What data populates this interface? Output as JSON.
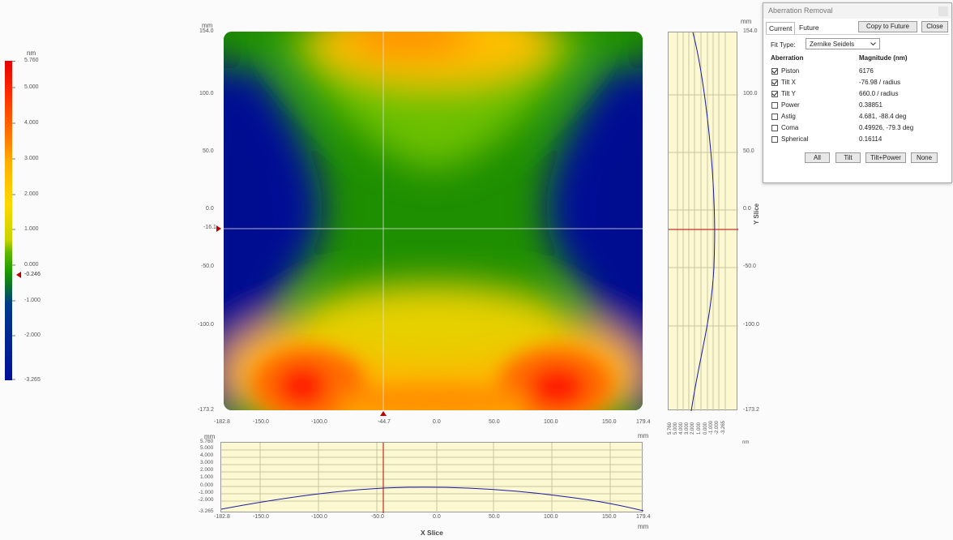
{
  "colorbar": {
    "unit": "nm",
    "max_label": "5.760",
    "ticks": [
      "5.000",
      "4.000",
      "3.000",
      "2.000",
      "1.000",
      "0.000",
      "-1.000",
      "-2.000"
    ],
    "marker_label": "-0.246",
    "min_label": "-3.265"
  },
  "map": {
    "unit_top": "mm",
    "y_ticks": [
      "154.0",
      "100.0",
      "50.0",
      "0.0",
      "-50.0",
      "-100.0",
      "-173.2"
    ],
    "y_cursor_label": "-16.1",
    "x_ticks": [
      "-182.8",
      "-150.0",
      "-100.0",
      "0.0",
      "50.0",
      "100.0",
      "150.0",
      "179.4"
    ],
    "x_cursor_label": "-44.7",
    "unit_bottom": "mm"
  },
  "yslice": {
    "unit_top": "mm",
    "y_ticks": [
      "154.0",
      "100.0",
      "50.0",
      "0.0",
      "-50.0",
      "-100.0",
      "-173.2"
    ],
    "title": "Y Slice",
    "x_ticks": [
      "5.760",
      "5.000",
      "4.000",
      "3.000",
      "2.000",
      "1.000",
      "0.000",
      "-1.000",
      "-2.000",
      "-3.265"
    ],
    "unit_bottom": "nm"
  },
  "xslice": {
    "unit_top": "mm",
    "y_ticks": [
      "5.760",
      "5.000",
      "4.000",
      "3.000",
      "2.000",
      "1.000",
      "0.000",
      "-1.000",
      "-2.000",
      "-3.265"
    ],
    "x_ticks": [
      "-182.8",
      "-150.0",
      "-100.0",
      "-50.0",
      "0.0",
      "50.0",
      "100.0",
      "150.0",
      "179.4"
    ],
    "unit_bottom": "mm",
    "title": "X Slice"
  },
  "dialog": {
    "title": "Aberration Removal",
    "tabs": [
      "Current",
      "Future"
    ],
    "copy_button": "Copy to Future",
    "close_button": "Close",
    "fit_type_label": "Fit Type:",
    "fit_type_value": "Zernike Seidels",
    "col_aberration": "Aberration",
    "col_magnitude": "Magnitude (nm)",
    "rows": [
      {
        "name": "Piston",
        "value": "6176",
        "checked": true
      },
      {
        "name": "Tilt X",
        "value": "-76.98 / radius",
        "checked": true
      },
      {
        "name": "Tilt Y",
        "value": "660.0 / radius",
        "checked": true
      },
      {
        "name": "Power",
        "value": "0.38851",
        "checked": false
      },
      {
        "name": "Astig",
        "value": "4.681, -88.4 deg",
        "checked": false
      },
      {
        "name": "Coma",
        "value": "0.49926, -79.3 deg",
        "checked": false
      },
      {
        "name": "Spherical",
        "value": "0.16114",
        "checked": false
      }
    ],
    "buttons": [
      "All",
      "Tilt",
      "Tilt+Power",
      "None"
    ]
  }
}
